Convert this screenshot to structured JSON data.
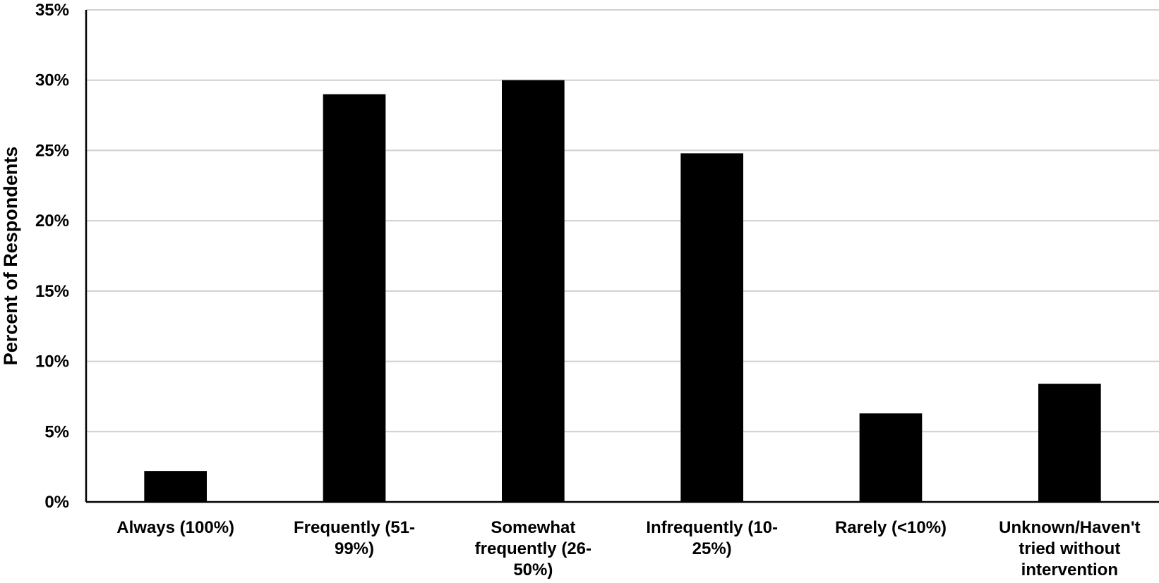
{
  "chart_data": {
    "type": "bar",
    "title": "",
    "xlabel": "",
    "ylabel": "Percent of Respondents",
    "ylim": [
      0,
      35
    ],
    "yticks": [
      "0%",
      "5%",
      "10%",
      "15%",
      "20%",
      "25%",
      "30%",
      "35%"
    ],
    "ytick_values": [
      0,
      5,
      10,
      15,
      20,
      25,
      30,
      35
    ],
    "grid": true,
    "legend": "none",
    "bar_color": "#000000",
    "categories": [
      [
        "Always (100%)"
      ],
      [
        "Frequently (51-",
        "99%)"
      ],
      [
        "Somewhat",
        "frequently (26-",
        "50%)"
      ],
      [
        "Infrequently (10-",
        "25%)"
      ],
      [
        "Rarely (<10%)"
      ],
      [
        "Unknown/Haven't",
        "tried without",
        "intervention"
      ]
    ],
    "values": [
      2.2,
      29.0,
      30.0,
      24.8,
      6.3,
      8.4
    ]
  }
}
